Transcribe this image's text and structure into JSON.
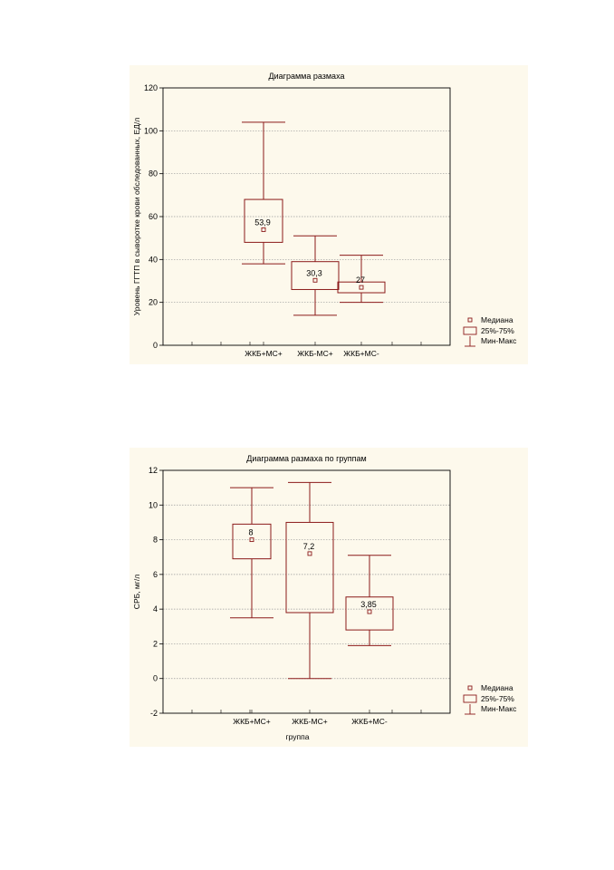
{
  "colors": {
    "stroke": "#8b1a1a",
    "panel": "#fdf9ec",
    "grid": "#9a9a9a"
  },
  "legend": {
    "median": "Медиана",
    "box": "25%-75%",
    "whisker": "Мин-Макс"
  },
  "chart_data": [
    {
      "type": "box",
      "title": "Диаграмма размаха",
      "xlabel": "",
      "ylabel": "Уровень ГГТП в сыворотке крови обследованных, ЕД/л",
      "ylim": [
        0,
        120
      ],
      "yticks": [
        0,
        20,
        40,
        60,
        80,
        100,
        120
      ],
      "grid": true,
      "legend_position": "bottom-right",
      "categories": [
        "ЖКБ+МС+",
        "ЖКБ-МС+",
        "ЖКБ+МС-"
      ],
      "series": [
        {
          "median": 53.9,
          "q1": 48,
          "q3": 68,
          "min": 38,
          "max": 104,
          "label": "53,9"
        },
        {
          "median": 30.3,
          "q1": 26,
          "q3": 39,
          "min": 14,
          "max": 51,
          "label": "30,3"
        },
        {
          "median": 27,
          "q1": 24.5,
          "q3": 29.5,
          "min": 20,
          "max": 42,
          "label": "27"
        }
      ]
    },
    {
      "type": "box",
      "title": "Диаграмма размаха по группам",
      "xlabel": "группа",
      "ylabel": "СРБ, мг/л",
      "ylim": [
        -2,
        12
      ],
      "yticks": [
        -2,
        0,
        2,
        4,
        6,
        8,
        10,
        12
      ],
      "grid": true,
      "legend_position": "bottom-right",
      "categories": [
        "ЖКБ+МС+",
        "ЖКБ-МС+",
        "ЖКБ+МС-"
      ],
      "series": [
        {
          "median": 8,
          "q1": 6.9,
          "q3": 8.9,
          "min": 3.5,
          "max": 11,
          "label": "8"
        },
        {
          "median": 7.2,
          "q1": 3.8,
          "q3": 9,
          "min": 0,
          "max": 11.3,
          "label": "7,2"
        },
        {
          "median": 3.85,
          "q1": 2.8,
          "q3": 4.7,
          "min": 1.9,
          "max": 7.1,
          "label": "3,85"
        }
      ]
    }
  ]
}
